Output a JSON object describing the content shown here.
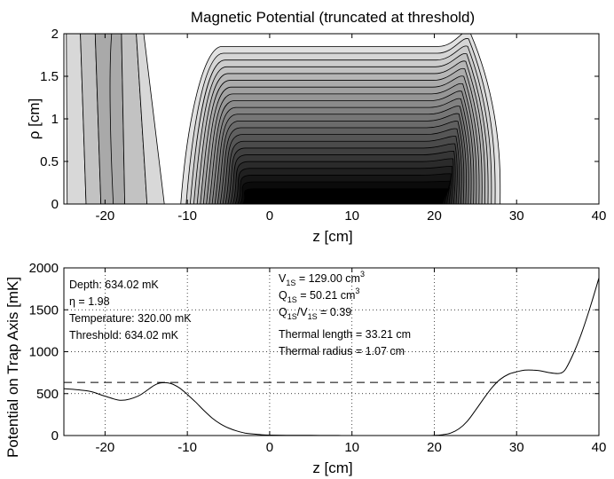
{
  "chart_data": [
    {
      "type": "contour",
      "title": "Magnetic Potential (truncated at threshold)",
      "xlabel": "z [cm]",
      "ylabel": "ρ [cm]",
      "xlim": [
        -25,
        40
      ],
      "ylim": [
        0,
        2
      ],
      "xticks": [
        -20,
        -10,
        0,
        10,
        20,
        30,
        40
      ],
      "yticks": [
        0,
        0.5,
        1,
        1.5,
        2
      ],
      "ytick_labels": [
        "0",
        "0.5",
        "1",
        "1.5",
        "2"
      ],
      "n_levels": 22,
      "regions": [
        {
          "name": "left-coil-region",
          "z_start": -25,
          "z_end": -12.5,
          "note": "grey bands near z = -20"
        },
        {
          "name": "trap-well",
          "z_start": -11,
          "z_end": 28,
          "note": "nested contours, deepest (black) near z = 0 to 20 at rho = 0"
        }
      ]
    },
    {
      "type": "line",
      "xlabel": "z [cm]",
      "ylabel": "Potential on Trap Axis [mK]",
      "xlim": [
        -25,
        40
      ],
      "ylim": [
        0,
        2000
      ],
      "xticks": [
        -20,
        -10,
        0,
        10,
        20,
        30,
        40
      ],
      "yticks": [
        0,
        500,
        1000,
        1500,
        2000
      ],
      "grid": "dotted",
      "series": [
        {
          "name": "potential",
          "style": "solid",
          "x": [
            -25,
            -22,
            -20,
            -18,
            -16,
            -14,
            -13,
            -12,
            -11,
            -10,
            -9,
            -8,
            -7,
            -6,
            -5,
            -4,
            -3,
            -2,
            -1,
            0,
            2,
            5,
            8,
            10,
            15,
            19,
            20,
            21,
            22,
            23,
            24,
            25,
            26,
            27,
            28,
            29,
            30,
            31,
            32,
            33,
            34,
            35,
            35.5,
            36,
            37,
            38,
            39,
            40
          ],
          "values": [
            560,
            530,
            470,
            420,
            470,
            600,
            630,
            620,
            570,
            490,
            400,
            300,
            210,
            140,
            90,
            55,
            30,
            18,
            10,
            5,
            3,
            2,
            1,
            0,
            0,
            0,
            2,
            10,
            30,
            80,
            170,
            300,
            440,
            570,
            670,
            730,
            760,
            780,
            780,
            770,
            750,
            740,
            750,
            800,
            1000,
            1250,
            1550,
            1880
          ]
        },
        {
          "name": "threshold",
          "style": "dashed",
          "x": [
            -25,
            40
          ],
          "values": [
            634.02,
            634.02
          ]
        }
      ],
      "annotations_left": [
        "Depth: 634.02 mK",
        "η = 1.98",
        "Temperature: 320.00 mK",
        "Threshold: 634.02 mK"
      ],
      "annotations_right": {
        "v1s_main": "V",
        "v1s_sub": "1S",
        "v1s_value": " = 129.00 cm",
        "v1s_unit_sup": "3",
        "q1s_main": "Q",
        "q1s_sub": "1S",
        "q1s_value": " = 50.21 cm",
        "q1s_unit_sup": "3",
        "ratio_q": "Q",
        "ratio_q_sub": "1S",
        "ratio_slash": "/V",
        "ratio_v_sub": "1S",
        "ratio_value": " = 0.39",
        "thermal_length": "Thermal length = 33.21 cm",
        "thermal_radius": "Thermal radius = 1.07 cm"
      }
    }
  ]
}
